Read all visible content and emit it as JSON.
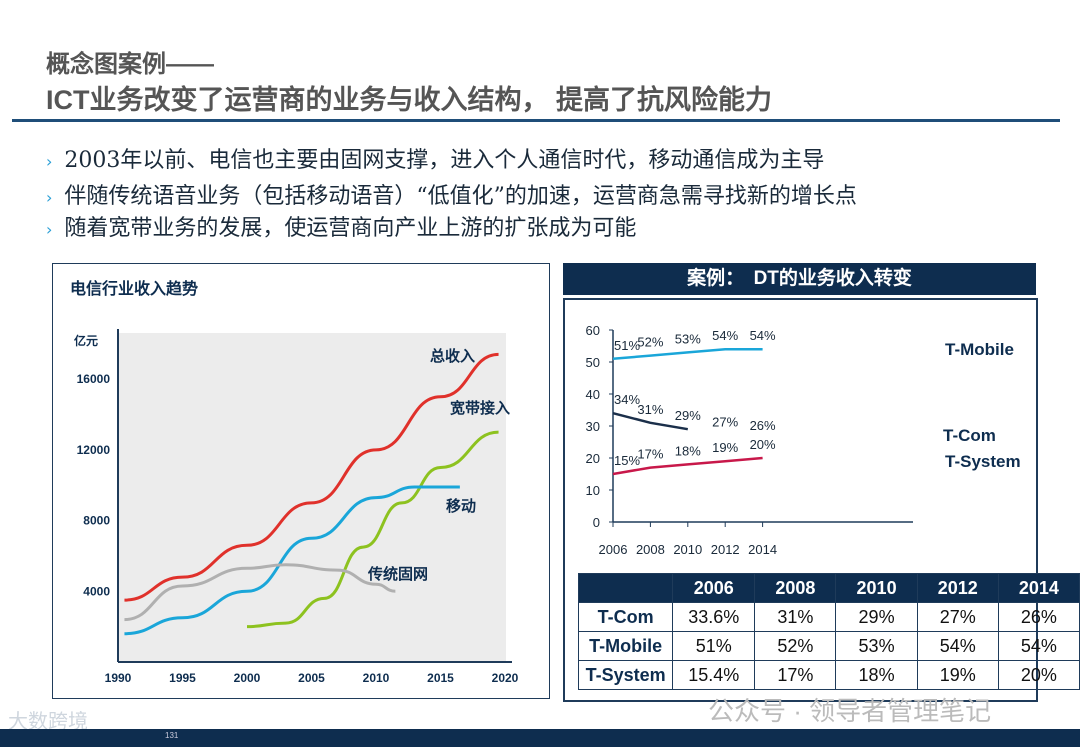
{
  "header": {
    "title_line1": "概念图案例——",
    "title_line2": "ICT业务改变了运营商的业务与收入结构， 提高了抗风险能力"
  },
  "bullets": [
    "2003年以前、电信也主要由固网支撑，进入个人通信时代，移动通信成为主导",
    "伴随传统语音业务（包括移动语音）“低值化”的加速，运营商急需寻找新的增长点",
    "随着宽带业务的发展，使运营商向产业上游的扩张成为可能"
  ],
  "bullet_icon": "chevron-right-icon",
  "chart_data": [
    {
      "type": "line",
      "title": "电信行业收入趋势",
      "ylabel": "亿元",
      "xlim": [
        1990,
        2020
      ],
      "ylim": [
        0,
        18000
      ],
      "x_ticks": [
        "1990",
        "1995",
        "2000",
        "2005",
        "2010",
        "2015",
        "2020"
      ],
      "y_ticks": [
        "4000",
        "8000",
        "12000",
        "16000"
      ],
      "series": [
        {
          "name": "总收入",
          "color": "#e0312b",
          "points": [
            [
              1990.5,
              3500
            ],
            [
              1995,
              4800
            ],
            [
              2000,
              6600
            ],
            [
              2005,
              9000
            ],
            [
              2010,
              12000
            ],
            [
              2015,
              15000
            ],
            [
              2019.5,
              17400
            ]
          ]
        },
        {
          "name": "宽带接入",
          "color": "#8dc21f",
          "points": [
            [
              2000,
              2000
            ],
            [
              2003,
              2200
            ],
            [
              2006,
              3600
            ],
            [
              2009,
              6500
            ],
            [
              2012,
              9000
            ],
            [
              2015,
              11000
            ],
            [
              2019.5,
              13000
            ]
          ]
        },
        {
          "name": "移动",
          "color": "#1aa6d9",
          "points": [
            [
              1990.5,
              1600
            ],
            [
              1995,
              2500
            ],
            [
              2000,
              4000
            ],
            [
              2005,
              7000
            ],
            [
              2010,
              9300
            ],
            [
              2013,
              9900
            ],
            [
              2016.5,
              9900
            ]
          ]
        },
        {
          "name": "传统固网",
          "color": "#b0b0b0",
          "points": [
            [
              1990.5,
              2400
            ],
            [
              1995,
              4300
            ],
            [
              2000,
              5300
            ],
            [
              2003,
              5500
            ],
            [
              2007,
              5200
            ],
            [
              2010,
              4400
            ],
            [
              2011.5,
              4000
            ]
          ]
        }
      ]
    },
    {
      "type": "line",
      "title": "案例：　DT的业务收入转变",
      "x": [
        2006,
        2008,
        2010,
        2012,
        2014
      ],
      "ylim": [
        0,
        60
      ],
      "y_ticks": [
        "0",
        "10",
        "20",
        "30",
        "40",
        "50",
        "60"
      ],
      "series": [
        {
          "name": "T-Mobile",
          "color": "#1aa6d9",
          "values": [
            51,
            52,
            53,
            54,
            54
          ],
          "labels": [
            "51%",
            "52%",
            "53%",
            "54%",
            "54%"
          ],
          "line_to": 2014
        },
        {
          "name": "T-Com",
          "color": "#1b2f4a",
          "values": [
            34,
            31,
            29,
            27,
            26
          ],
          "labels": [
            "34%",
            "31%",
            "29%",
            "27%",
            "26%"
          ],
          "line_to": 2010
        },
        {
          "name": "T-System",
          "color": "#c8184a",
          "values": [
            15,
            17,
            18,
            19,
            20
          ],
          "labels": [
            "15%",
            "17%",
            "18%",
            "19%",
            "20%"
          ],
          "line_to": 2014
        }
      ]
    },
    {
      "type": "table",
      "columns": [
        "",
        "2006",
        "2008",
        "2010",
        "2012",
        "2014"
      ],
      "rows": [
        [
          "T-Com",
          "33.6%",
          "31%",
          "29%",
          "27%",
          "26%"
        ],
        [
          "T-Mobile",
          "51%",
          "52%",
          "53%",
          "54%",
          "54%"
        ],
        [
          "T-System",
          "15.4%",
          "17%",
          "18%",
          "19%",
          "20%"
        ]
      ]
    }
  ],
  "watermark": "公众号 · 领导者管理笔记",
  "logo": "大数跨境",
  "page_number": "131"
}
